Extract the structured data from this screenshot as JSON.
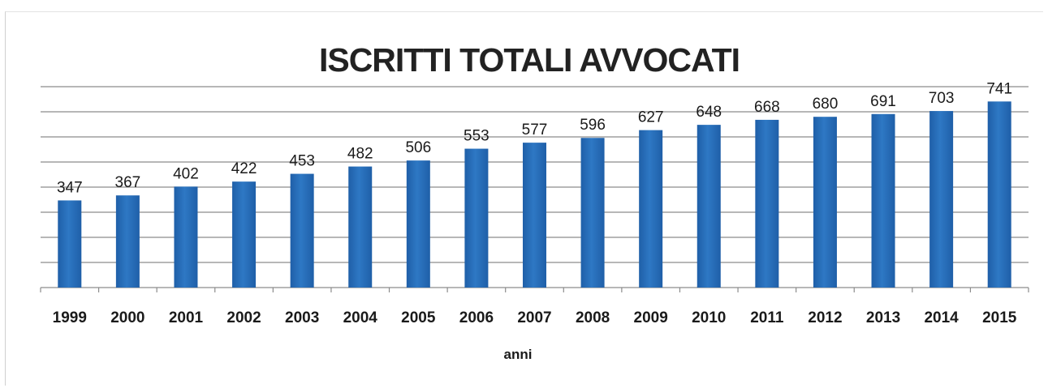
{
  "chart_data": {
    "type": "bar",
    "title": "ISCRITTI TOTALI AVVOCATI",
    "xlabel": "anni",
    "ylabel": "",
    "categories": [
      "1999",
      "2000",
      "2001",
      "2002",
      "2003",
      "2004",
      "2005",
      "2006",
      "2007",
      "2008",
      "2009",
      "2010",
      "2011",
      "2012",
      "2013",
      "2014",
      "2015"
    ],
    "values": [
      347,
      367,
      402,
      422,
      453,
      482,
      506,
      553,
      577,
      596,
      627,
      648,
      668,
      680,
      691,
      703,
      741
    ],
    "ylim": [
      0,
      800
    ],
    "y_gridlines": true,
    "y_tick_labels_shown": false,
    "legend": "none",
    "bar_color": "#2E78C4",
    "bar_color_dark": "#1F5FA8",
    "grid_color": "#8C8C8C"
  }
}
